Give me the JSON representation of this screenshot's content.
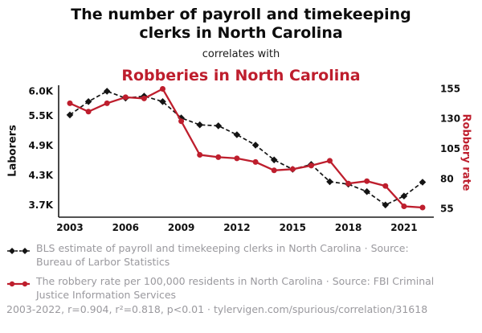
{
  "header": {
    "title_line1": "The number of payroll and timekeeping",
    "title_line2": "clerks in North Carolina",
    "connector": "correlates with",
    "correlate_title": "Robberies in North Carolina"
  },
  "colors": {
    "accent_red": "#be1e2d",
    "series_black": "#141414",
    "muted_gray": "#9a999e",
    "axis_black": "#1a1a1a"
  },
  "chart_data": {
    "type": "line",
    "title": "The number of payroll and timekeeping clerks in North Carolina correlates with Robberies in North Carolina",
    "grid": false,
    "legend_position": "bottom",
    "x": [
      2003,
      2004,
      2005,
      2006,
      2007,
      2008,
      2009,
      2010,
      2011,
      2012,
      2013,
      2014,
      2015,
      2016,
      2017,
      2018,
      2019,
      2020,
      2021,
      2022
    ],
    "x_ticks": [
      2003,
      2006,
      2009,
      2012,
      2015,
      2018,
      2021
    ],
    "left_axis": {
      "label": "Laborers",
      "ticks": [
        "6.0K",
        "5.5K",
        "4.9K",
        "4.3K",
        "3.7K"
      ],
      "tick_values": [
        6.0,
        5.5,
        4.9,
        4.3,
        3.7
      ],
      "range": [
        3.55,
        6.12
      ]
    },
    "right_axis": {
      "label": "Robbery rate",
      "ticks": [
        155,
        130,
        105,
        80,
        55
      ],
      "range": [
        52,
        158
      ]
    },
    "series": [
      {
        "id": "clerks",
        "name": "BLS estimate of payroll and timekeeping clerks in North Carolina",
        "axis": "left",
        "color": "#141414",
        "marker": "diamond",
        "dash": true,
        "values": [
          5.52,
          5.79,
          6.0,
          5.86,
          5.9,
          5.79,
          5.46,
          5.32,
          5.3,
          5.12,
          4.91,
          4.61,
          4.42,
          4.52,
          4.17,
          4.12,
          3.97,
          3.7,
          3.88,
          4.16
        ]
      },
      {
        "id": "robbery",
        "name": "The robbery rate per 100,000 residents in North Carolina",
        "axis": "right",
        "color": "#be1e2d",
        "marker": "circle",
        "dash": false,
        "values": [
          143,
          136,
          143,
          148,
          147,
          155,
          128,
          100,
          98,
          97,
          94,
          87,
          88,
          91,
          95,
          76,
          78,
          74,
          57,
          56
        ]
      }
    ]
  },
  "legend": [
    {
      "text": "BLS estimate of payroll and timekeeping clerks in North Carolina · Source: Bureau of Larbor Statistics"
    },
    {
      "text": "The robbery rate per 100,000 residents in North Carolina · Source: FBI Criminal Justice Information Services"
    }
  ],
  "footer": {
    "text": "2003-2022, r=0.904, r²=0.818, p<0.01 · tylervigen.com/spurious/correlation/31618"
  }
}
